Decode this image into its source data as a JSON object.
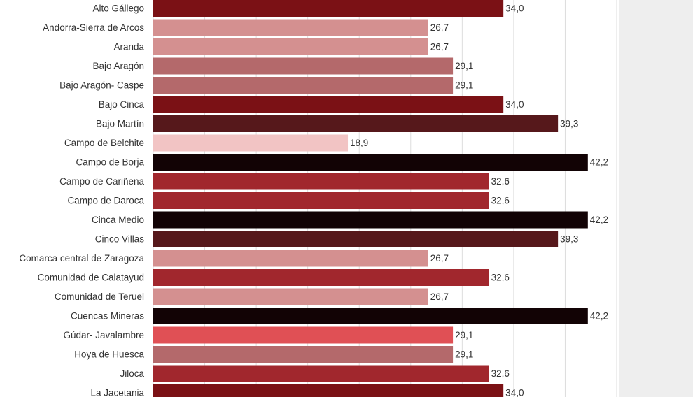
{
  "chart_data": {
    "type": "barh",
    "categories": [
      "Alto Gállego",
      "Andorra-Sierra de Arcos",
      "Aranda",
      "Bajo Aragón",
      "Bajo Aragón- Caspe",
      "Bajo Cinca",
      "Bajo Martín",
      "Campo de Belchite",
      "Campo de Borja",
      "Campo de Cariñena",
      "Campo de Daroca",
      "Cinca Medio",
      "Cinco Villas",
      "Comarca central de Zaragoza",
      "Comunidad de Calatayud",
      "Comunidad de Teruel",
      "Cuencas Mineras",
      "Gúdar- Javalambre",
      "Hoya de Huesca",
      "Jiloca",
      "La Jacetania"
    ],
    "values": [
      34.0,
      26.7,
      26.7,
      29.1,
      29.1,
      34.0,
      39.3,
      18.9,
      42.2,
      32.6,
      32.6,
      42.2,
      39.3,
      26.7,
      32.6,
      26.7,
      42.2,
      29.1,
      29.1,
      32.6,
      34.0
    ],
    "value_labels": [
      "34,0",
      "26,7",
      "26,7",
      "29,1",
      "29,1",
      "34,0",
      "39,3",
      "18,9",
      "42,2",
      "32,6",
      "32,6",
      "42,2",
      "39,3",
      "26,7",
      "32,6",
      "26,7",
      "42,2",
      "29,1",
      "29,1",
      "32,6",
      "34,0"
    ],
    "colors": [
      "#7b1115",
      "#d49090",
      "#d49090",
      "#b4696b",
      "#b4696b",
      "#7b1115",
      "#56181b",
      "#f2c4c4",
      "#120305",
      "#a1272d",
      "#a1272d",
      "#120305",
      "#56181b",
      "#d49090",
      "#a1272d",
      "#d49090",
      "#120305",
      "#e05055",
      "#b4696b",
      "#a1272d",
      "#7b1115"
    ],
    "xlim": [
      0,
      45
    ],
    "xticks": [
      0,
      5,
      10,
      15,
      20,
      25,
      30,
      35,
      40,
      45
    ],
    "grid": true
  }
}
